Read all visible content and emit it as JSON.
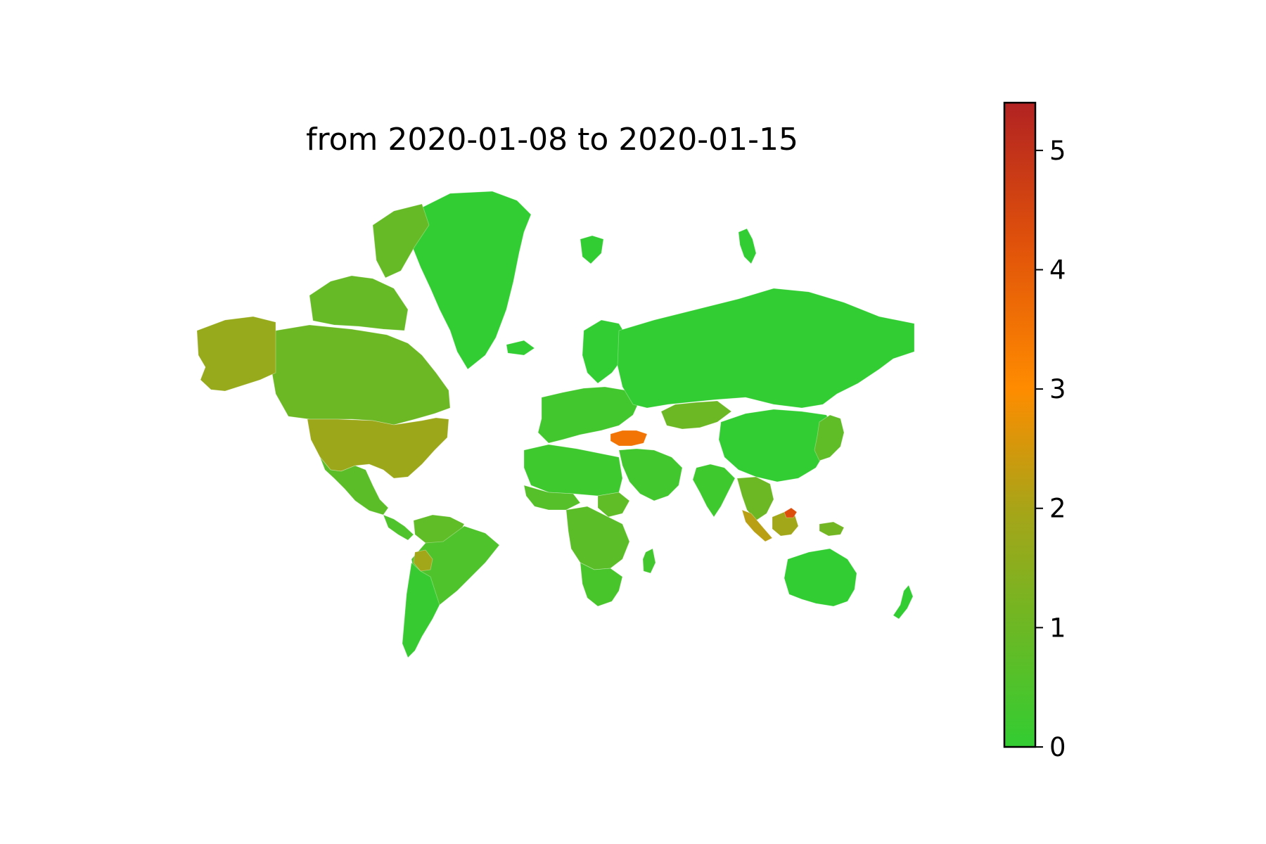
{
  "chart_data": {
    "type": "choropleth",
    "title": "from 2020-01-08 to 2020-01-15",
    "colorbar": {
      "vmin": 0,
      "vmax": 5.4,
      "ticks": [
        "0",
        "1",
        "2",
        "3",
        "4",
        "5"
      ],
      "colors": [
        "#32cd32",
        "#6cb824",
        "#a8a418",
        "#ff8c00",
        "#e0520a",
        "#b22222"
      ]
    },
    "regions": [
      {
        "name": "Greenland",
        "value": 0
      },
      {
        "name": "Canada",
        "value": 1.0
      },
      {
        "name": "Canadian Arctic",
        "value": 0.9
      },
      {
        "name": "Alaska",
        "value": 1.7
      },
      {
        "name": "United States",
        "value": 1.8
      },
      {
        "name": "Mexico",
        "value": 0.7
      },
      {
        "name": "Central America",
        "value": 0.5
      },
      {
        "name": "Colombia/Venezuela",
        "value": 0.8
      },
      {
        "name": "Brazil",
        "value": 0.5
      },
      {
        "name": "Bolivia",
        "value": 1.9
      },
      {
        "name": "Argentina/Chile",
        "value": 0.1
      },
      {
        "name": "Europe",
        "value": 0.3
      },
      {
        "name": "Iceland",
        "value": 0
      },
      {
        "name": "Scandinavia",
        "value": 0
      },
      {
        "name": "Turkey",
        "value": 3.5
      },
      {
        "name": "Russia",
        "value": 0
      },
      {
        "name": "Kazakhstan",
        "value": 1.0
      },
      {
        "name": "China",
        "value": 0
      },
      {
        "name": "India",
        "value": 0.2
      },
      {
        "name": "Middle East",
        "value": 0.3
      },
      {
        "name": "North Africa",
        "value": 0.2
      },
      {
        "name": "West Africa",
        "value": 0.6
      },
      {
        "name": "Sudan",
        "value": 0.8
      },
      {
        "name": "Central Africa",
        "value": 0.7
      },
      {
        "name": "Southern Africa",
        "value": 0.4
      },
      {
        "name": "Madagascar",
        "value": 0.3
      },
      {
        "name": "Japan",
        "value": 0.8
      },
      {
        "name": "Southeast Asia",
        "value": 1.0
      },
      {
        "name": "Sumatra",
        "value": 2.2
      },
      {
        "name": "Borneo",
        "value": 1.9
      },
      {
        "name": "Borneo North",
        "value": 4.3
      },
      {
        "name": "Papua",
        "value": 1.1
      },
      {
        "name": "Australia",
        "value": 0
      },
      {
        "name": "New Zealand",
        "value": 0
      },
      {
        "name": "Svalbard",
        "value": 0
      },
      {
        "name": "Novaya Zemlya",
        "value": 0
      }
    ]
  }
}
